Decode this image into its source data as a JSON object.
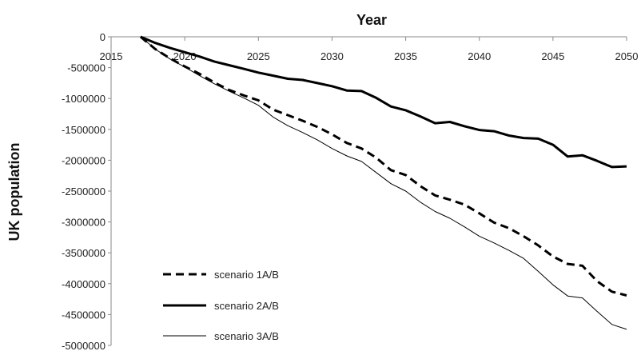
{
  "chart_data": {
    "type": "line",
    "xlabel": "Year",
    "ylabel": "UK population",
    "xlim": [
      2015,
      2050
    ],
    "ylim": [
      -5000000,
      0
    ],
    "x_ticks": [
      2015,
      2020,
      2025,
      2030,
      2035,
      2040,
      2045,
      2050
    ],
    "y_ticks": [
      0,
      -500000,
      -1000000,
      -1500000,
      -2000000,
      -2500000,
      -3000000,
      -3500000,
      -4000000,
      -4500000,
      -5000000
    ],
    "x_tick_labels": [
      "2015",
      "2020",
      "2025",
      "2030",
      "2035",
      "2040",
      "2045",
      "2050"
    ],
    "y_tick_labels": [
      "0",
      "-500000",
      "-1000000",
      "-1500000",
      "-2000000",
      "-2500000",
      "-3000000",
      "-3500000",
      "-4000000",
      "-4500000",
      "-5000000"
    ],
    "x_axis_position": "top",
    "grid": false,
    "legend_position": "bottom-left",
    "x": [
      2017,
      2018,
      2019,
      2020,
      2021,
      2022,
      2023,
      2024,
      2025,
      2026,
      2027,
      2028,
      2029,
      2030,
      2031,
      2032,
      2033,
      2034,
      2035,
      2036,
      2037,
      2038,
      2039,
      2040,
      2041,
      2042,
      2043,
      2044,
      2045,
      2046,
      2047,
      2048,
      2049,
      2050
    ],
    "series": [
      {
        "name": "scenario 1A/B",
        "style": "dashed",
        "color": "#000000",
        "values": [
          0,
          -200000,
          -350000,
          -480000,
          -600000,
          -740000,
          -860000,
          -950000,
          -1030000,
          -1180000,
          -1270000,
          -1360000,
          -1460000,
          -1580000,
          -1720000,
          -1810000,
          -1960000,
          -2160000,
          -2240000,
          -2420000,
          -2570000,
          -2640000,
          -2720000,
          -2860000,
          -3010000,
          -3100000,
          -3230000,
          -3380000,
          -3560000,
          -3680000,
          -3710000,
          -3960000,
          -4130000,
          -4190000
        ]
      },
      {
        "name": "scenario 2A/B",
        "style": "solid-thick",
        "color": "#000000",
        "values": [
          0,
          -100000,
          -180000,
          -250000,
          -320000,
          -400000,
          -460000,
          -520000,
          -580000,
          -630000,
          -680000,
          -700000,
          -750000,
          -800000,
          -870000,
          -880000,
          -990000,
          -1130000,
          -1190000,
          -1290000,
          -1400000,
          -1380000,
          -1450000,
          -1510000,
          -1530000,
          -1600000,
          -1640000,
          -1650000,
          -1750000,
          -1940000,
          -1920000,
          -2010000,
          -2110000,
          -2100000
        ]
      },
      {
        "name": "scenario 3A/B",
        "style": "solid-thin",
        "color": "#000000",
        "values": [
          0,
          -200000,
          -360000,
          -490000,
          -630000,
          -760000,
          -880000,
          -990000,
          -1110000,
          -1300000,
          -1440000,
          -1550000,
          -1670000,
          -1810000,
          -1930000,
          -2020000,
          -2200000,
          -2380000,
          -2500000,
          -2680000,
          -2830000,
          -2940000,
          -3080000,
          -3230000,
          -3340000,
          -3460000,
          -3590000,
          -3800000,
          -4020000,
          -4200000,
          -4230000,
          -4450000,
          -4660000,
          -4740000
        ]
      }
    ]
  }
}
